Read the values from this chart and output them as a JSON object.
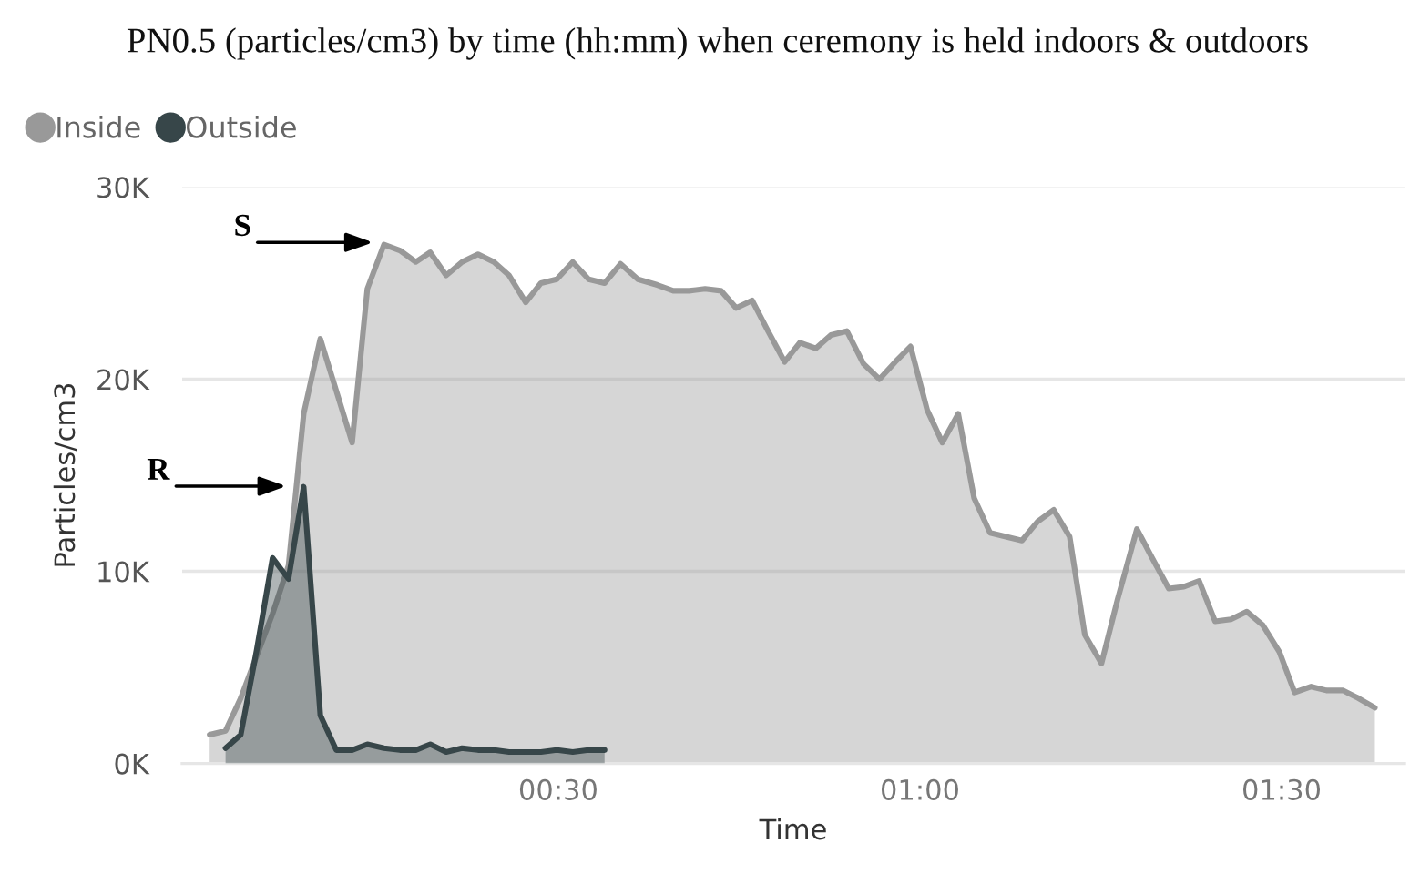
{
  "chart_data": {
    "type": "area",
    "title": "PN0.5 (particles/cm3) by time (hh:mm) when ceremony is held indoors & outdoors",
    "xlabel": "Time",
    "ylabel": "Particles/cm3",
    "x": [
      0.018,
      0.04,
      0.061,
      0.083,
      0.105,
      0.127,
      0.148,
      0.171,
      0.193,
      0.215,
      0.236,
      0.259,
      0.281,
      0.303,
      0.323,
      0.345,
      0.367,
      0.389,
      0.411,
      0.432,
      0.455,
      0.476,
      0.498,
      0.52,
      0.542,
      0.564,
      0.586,
      0.61,
      0.637,
      0.659,
      0.681,
      0.703,
      0.725,
      0.746,
      0.768,
      0.79,
      0.813,
      0.834,
      0.856,
      0.877,
      0.899,
      0.922,
      0.944,
      0.966,
      0.987,
      1.01,
      1.031,
      1.053,
      1.075,
      1.097,
      1.119,
      1.141,
      1.163,
      1.185,
      1.207,
      1.228,
      1.251,
      1.273,
      1.3,
      1.321,
      1.344,
      1.365,
      1.386,
      1.408,
      1.43,
      1.452,
      1.474,
      1.497,
      1.518,
      1.541,
      1.562,
      1.585,
      1.606,
      1.629
    ],
    "series": [
      {
        "name": "Inside",
        "color": "#999999",
        "values": [
          1500,
          1700,
          3400,
          5600,
          7800,
          10300,
          18200,
          22100,
          19400,
          16700,
          24700,
          27000,
          26700,
          26100,
          26600,
          25400,
          26100,
          26500,
          26100,
          25400,
          24000,
          25000,
          25200,
          26100,
          25200,
          25000,
          26000,
          25200,
          24900,
          24600,
          24600,
          24700,
          24600,
          23700,
          24100,
          22500,
          20900,
          21900,
          21600,
          22300,
          22500,
          20800,
          20000,
          20900,
          21700,
          18400,
          16700,
          18200,
          13800,
          12000,
          11800,
          11600,
          12600,
          13200,
          11800,
          6700,
          5200,
          8500,
          12200,
          10700,
          9100,
          9200,
          9500,
          7400,
          7500,
          7900,
          7200,
          5800,
          3700,
          4000,
          3800,
          3800,
          3400,
          2900
        ]
      },
      {
        "name": "Outside",
        "color": "#374649",
        "x": [
          0.04,
          0.061,
          0.083,
          0.105,
          0.127,
          0.148,
          0.171,
          0.193,
          0.215,
          0.236,
          0.259,
          0.281,
          0.303,
          0.323,
          0.345,
          0.367,
          0.389,
          0.411,
          0.432,
          0.455,
          0.476,
          0.498,
          0.52,
          0.542,
          0.564
        ],
        "values": [
          800,
          1500,
          5900,
          10700,
          9600,
          14400,
          2500,
          700,
          700,
          1000,
          800,
          700,
          700,
          1000,
          600,
          800,
          700,
          700,
          600,
          600,
          600,
          700,
          600,
          700,
          700
        ]
      }
    ],
    "xlim": [
      -0.02,
      1.67
    ],
    "xticks": [
      {
        "value": 0.5,
        "label": "00:30"
      },
      {
        "value": 1.0,
        "label": "01:00"
      },
      {
        "value": 1.5,
        "label": "01:30"
      }
    ],
    "ylim": [
      0,
      30000
    ],
    "yticks": [
      {
        "value": 0,
        "label": "0K"
      },
      {
        "value": 10000,
        "label": "10K"
      },
      {
        "value": 20000,
        "label": "20K"
      },
      {
        "value": 30000,
        "label": "30K"
      }
    ],
    "grid": "y",
    "legend": "top left",
    "annotations": [
      "R",
      "S"
    ]
  }
}
